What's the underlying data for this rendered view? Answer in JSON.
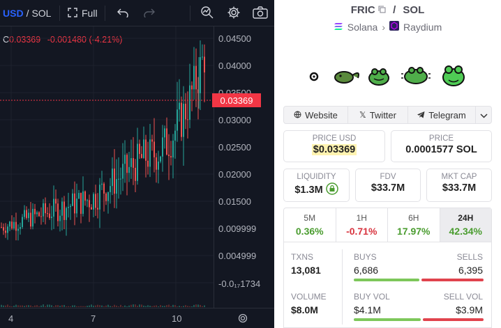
{
  "chart": {
    "pair_base": "USD",
    "pair_sep": "/",
    "pair_quote": "SOL",
    "full_label": "Full",
    "ohlc_prefix": "C",
    "ohlc_close": "0.03369",
    "ohlc_change": "-0.001480",
    "ohlc_change_pct": "(-4.21%)",
    "current_price": "0.03369",
    "y_ticks": [
      "0.04500",
      "0.04000",
      "0.03500",
      "0.03000",
      "0.02500",
      "0.02000",
      "0.01500",
      "0.009999",
      "0.004999",
      "-0.0₁₇1734"
    ],
    "x_ticks": [
      "4",
      "7",
      "10"
    ],
    "colors": {
      "up": "#26a69a",
      "down": "#ef5350",
      "accent": "#2962ff",
      "bg": "#131722"
    }
  },
  "pair": {
    "base": "FRIC",
    "sep": "/",
    "quote": "SOL",
    "chain": "Solana",
    "dex": "Raydium"
  },
  "social": {
    "website": "Website",
    "twitter": "Twitter",
    "telegram": "Telegram"
  },
  "price": {
    "usd_label": "PRICE USD",
    "usd_value": "$0.03369",
    "native_label": "PRICE",
    "native_value": "0.0001577 SOL"
  },
  "metrics": {
    "liquidity_label": "LIQUIDITY",
    "liquidity_value": "$1.3M",
    "fdv_label": "FDV",
    "fdv_value": "$33.7M",
    "mktcap_label": "MKT CAP",
    "mktcap_value": "$33.7M"
  },
  "timeframes": [
    {
      "label": "5M",
      "value": "0.36%"
    },
    {
      "label": "1H",
      "value": "-0.71%"
    },
    {
      "label": "6H",
      "value": "17.97%"
    },
    {
      "label": "24H",
      "value": "42.34%"
    }
  ],
  "stats": {
    "txns_label": "TXNS",
    "txns_value": "13,081",
    "buys_label": "BUYS",
    "buys_value": "6,686",
    "sells_label": "SELLS",
    "sells_value": "6,395",
    "volume_label": "VOLUME",
    "volume_value": "$8.0M",
    "buyvol_label": "BUY VOL",
    "buyvol_value": "$4.1M",
    "sellvol_label": "SELL VOL",
    "sellvol_value": "$3.9M"
  }
}
